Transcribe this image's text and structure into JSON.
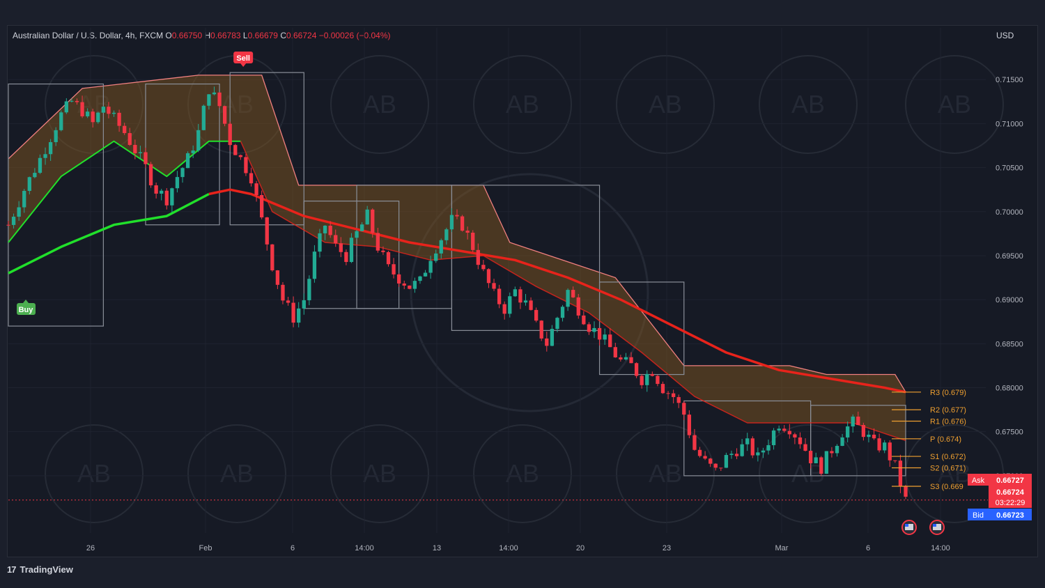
{
  "header": {
    "symbol": "Australian Dollar / U.S. Dollar, 4h, FXCM",
    "open_label": "O",
    "open": "0.66750",
    "high_label": "H",
    "high": "0.66783",
    "low_label": "L",
    "low": "0.66679",
    "close_label": "C",
    "close": "0.66724",
    "change": "−0.00026 (−0.04%)"
  },
  "currency": "USD",
  "brand": {
    "logo": "17",
    "name": "TradingView"
  },
  "colors": {
    "up": "#22ab94",
    "down": "#f23645",
    "ema_green": "#21e02b",
    "ema_red": "#e8231b",
    "cloud": "#8a5a1f",
    "pivot": "#f0a030"
  },
  "signals": {
    "sell": "Sell",
    "buy": "Buy"
  },
  "price_tags": {
    "ask_label": "Ask",
    "ask": "0.66727",
    "last": "0.66724",
    "countdown": "03:22:29",
    "bid_label": "Bid",
    "bid": "0.66723"
  },
  "chart_data": {
    "type": "candlestick",
    "title": "Australian Dollar / U.S. Dollar, 4h, FXCM",
    "xlabel": "",
    "ylabel": "USD",
    "ylim": [
      0.6635,
      0.7185
    ],
    "x_ticks": [
      "26",
      "Feb",
      "6",
      "14:00",
      "13",
      "14:00",
      "20",
      "23",
      "Mar",
      "6",
      "14:00"
    ],
    "y_ticks": [
      "0.71500",
      "0.71000",
      "0.70500",
      "0.70000",
      "0.69500",
      "0.69000",
      "0.68500",
      "0.68000",
      "0.67500",
      "0.67000"
    ],
    "close_path": [
      [
        0,
        0.6985
      ],
      [
        3,
        0.7025
      ],
      [
        6,
        0.706
      ],
      [
        8,
        0.7085
      ],
      [
        10,
        0.711
      ],
      [
        12,
        0.7125
      ],
      [
        14,
        0.7115
      ],
      [
        16,
        0.71
      ],
      [
        18,
        0.712
      ],
      [
        20,
        0.7105
      ],
      [
        22,
        0.709
      ],
      [
        24,
        0.707
      ],
      [
        26,
        0.705
      ],
      [
        28,
        0.7025
      ],
      [
        30,
        0.7015
      ],
      [
        32,
        0.704
      ],
      [
        34,
        0.706
      ],
      [
        36,
        0.709
      ],
      [
        38,
        0.714
      ],
      [
        40,
        0.712
      ],
      [
        42,
        0.708
      ],
      [
        44,
        0.706
      ],
      [
        46,
        0.704
      ],
      [
        48,
        0.699
      ],
      [
        50,
        0.694
      ],
      [
        52,
        0.69
      ],
      [
        54,
        0.688
      ],
      [
        56,
        0.69
      ],
      [
        58,
        0.695
      ],
      [
        60,
        0.6985
      ],
      [
        62,
        0.696
      ],
      [
        64,
        0.695
      ],
      [
        66,
        0.6975
      ],
      [
        68,
        0.6995
      ],
      [
        70,
        0.696
      ],
      [
        72,
        0.6935
      ],
      [
        74,
        0.6925
      ],
      [
        76,
        0.6915
      ],
      [
        78,
        0.692
      ],
      [
        80,
        0.695
      ],
      [
        82,
        0.697
      ],
      [
        84,
        0.699
      ],
      [
        86,
        0.6985
      ],
      [
        88,
        0.696
      ],
      [
        90,
        0.693
      ],
      [
        92,
        0.6905
      ],
      [
        94,
        0.689
      ],
      [
        96,
        0.691
      ],
      [
        98,
        0.6895
      ],
      [
        100,
        0.687
      ],
      [
        102,
        0.685
      ],
      [
        104,
        0.688
      ],
      [
        106,
        0.691
      ],
      [
        108,
        0.689
      ],
      [
        110,
        0.687
      ],
      [
        112,
        0.686
      ],
      [
        114,
        0.6845
      ],
      [
        116,
        0.683
      ],
      [
        118,
        0.6825
      ],
      [
        120,
        0.681
      ],
      [
        122,
        0.682
      ],
      [
        124,
        0.68
      ],
      [
        126,
        0.679
      ],
      [
        128,
        0.677
      ],
      [
        130,
        0.673
      ],
      [
        132,
        0.6715
      ],
      [
        134,
        0.6705
      ],
      [
        136,
        0.672
      ],
      [
        138,
        0.673
      ],
      [
        140,
        0.6735
      ],
      [
        142,
        0.672
      ],
      [
        144,
        0.674
      ],
      [
        146,
        0.676
      ],
      [
        148,
        0.6755
      ],
      [
        150,
        0.674
      ],
      [
        152,
        0.672
      ],
      [
        154,
        0.671
      ],
      [
        156,
        0.673
      ],
      [
        158,
        0.675
      ],
      [
        160,
        0.676
      ],
      [
        162,
        0.675
      ],
      [
        164,
        0.6735
      ],
      [
        166,
        0.6733
      ],
      [
        168,
        0.671
      ],
      [
        170,
        0.6672
      ]
    ],
    "ema_slow": [
      [
        0,
        0.693
      ],
      [
        10,
        0.696
      ],
      [
        20,
        0.6985
      ],
      [
        30,
        0.6995
      ],
      [
        38,
        0.702
      ],
      [
        42,
        0.7025
      ],
      [
        46,
        0.702
      ],
      [
        56,
        0.6995
      ],
      [
        66,
        0.698
      ],
      [
        76,
        0.6965
      ],
      [
        86,
        0.6955
      ],
      [
        96,
        0.6945
      ],
      [
        106,
        0.6925
      ],
      [
        116,
        0.69
      ],
      [
        126,
        0.687
      ],
      [
        136,
        0.684
      ],
      [
        146,
        0.682
      ],
      [
        156,
        0.681
      ],
      [
        166,
        0.68
      ],
      [
        170,
        0.6795
      ]
    ],
    "ema_fast": [
      [
        0,
        0.6965
      ],
      [
        10,
        0.704
      ],
      [
        20,
        0.708
      ],
      [
        30,
        0.704
      ],
      [
        38,
        0.708
      ],
      [
        44,
        0.708
      ],
      [
        50,
        0.7
      ],
      [
        60,
        0.6965
      ],
      [
        70,
        0.696
      ],
      [
        80,
        0.6945
      ],
      [
        90,
        0.695
      ],
      [
        100,
        0.6915
      ],
      [
        110,
        0.6885
      ],
      [
        120,
        0.684
      ],
      [
        130,
        0.679
      ],
      [
        140,
        0.676
      ],
      [
        150,
        0.676
      ],
      [
        160,
        0.676
      ],
      [
        170,
        0.674
      ]
    ],
    "cloud_top": [
      [
        0,
        0.706
      ],
      [
        14,
        0.714
      ],
      [
        36,
        0.7155
      ],
      [
        48,
        0.7155
      ],
      [
        55,
        0.703
      ],
      [
        70,
        0.703
      ],
      [
        90,
        0.703
      ],
      [
        95,
        0.6965
      ],
      [
        105,
        0.6945
      ],
      [
        115,
        0.6925
      ],
      [
        128,
        0.6825
      ],
      [
        140,
        0.6825
      ],
      [
        148,
        0.6825
      ],
      [
        155,
        0.6815
      ],
      [
        168,
        0.6815
      ],
      [
        170,
        0.6795
      ]
    ],
    "pivots": [
      {
        "label": "R3 (0.679)",
        "value": 0.6795
      },
      {
        "label": "R2 (0.677)",
        "value": 0.6775
      },
      {
        "label": "R1 (0.676)",
        "value": 0.6762
      },
      {
        "label": "P (0.674)",
        "value": 0.6742
      },
      {
        "label": "S1 (0.672)",
        "value": 0.6722
      },
      {
        "label": "S2 (0.671)",
        "value": 0.6709
      },
      {
        "label": "S3 (0.669",
        "value": 0.6688
      }
    ],
    "current_price": 0.66724
  }
}
